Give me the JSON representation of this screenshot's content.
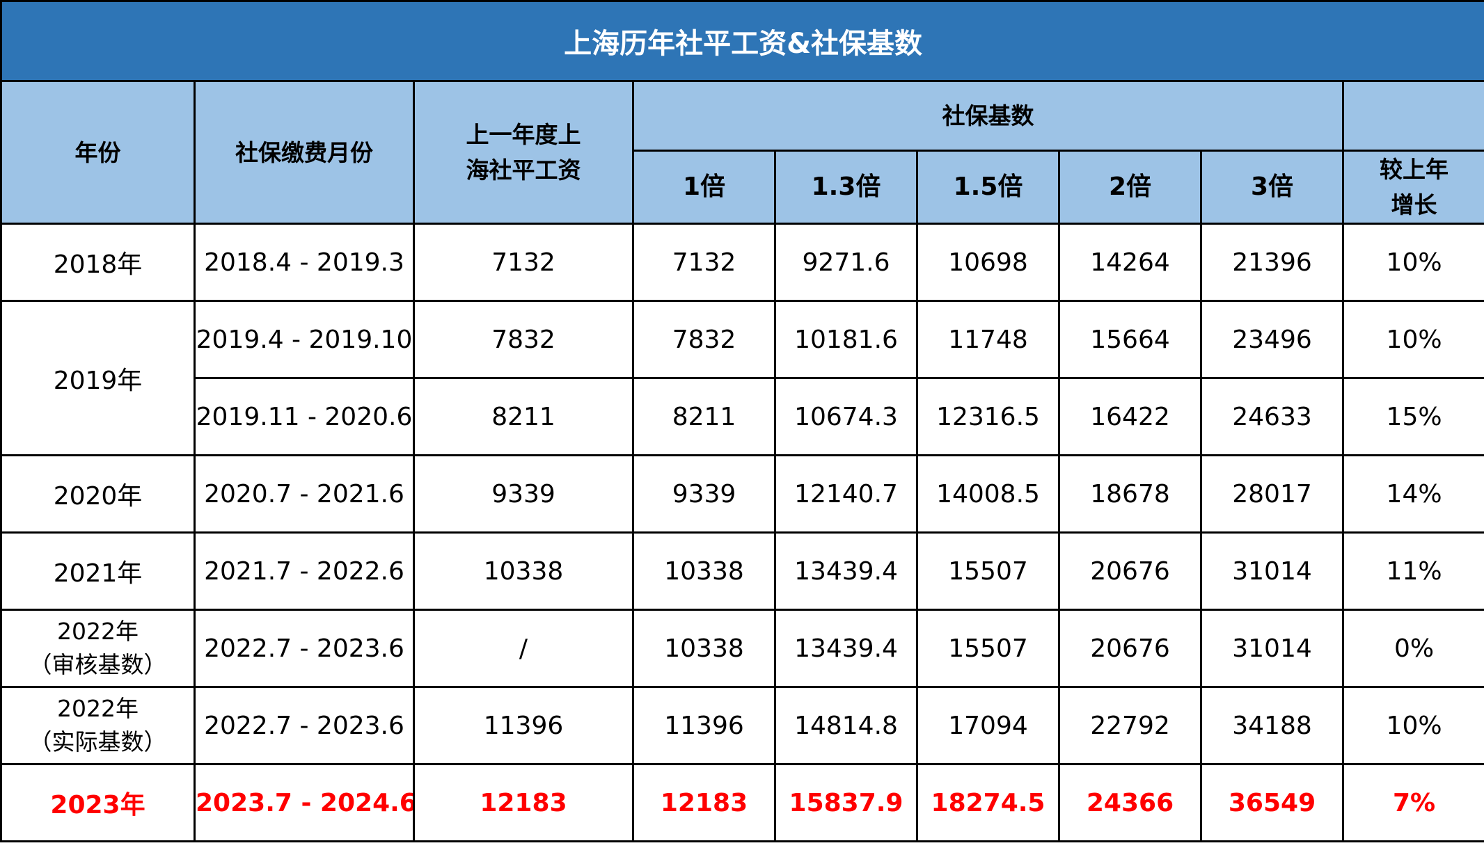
{
  "title": "上海历年社平工资&社保基数",
  "headers": {
    "year": "年份",
    "months": "社保缴费月份",
    "avg_wage": "上一年度上海社平工资",
    "base_group": "社保基数",
    "multipliers": [
      "1倍",
      "1.3倍",
      "1.5倍",
      "2倍",
      "3倍"
    ],
    "growth": "较上年增长"
  },
  "rows": [
    {
      "year": "2018年",
      "months": "2018.4 - 2019.3",
      "avg_wage": "7132",
      "x1": "7132",
      "x1_3": "9271.6",
      "x1_5": "10698",
      "x2": "14264",
      "x3": "21396",
      "growth": "10%"
    },
    {
      "year": "2019年",
      "months": "2019.4 - 2019.10",
      "avg_wage": "7832",
      "x1": "7832",
      "x1_3": "10181.6",
      "x1_5": "11748",
      "x2": "15664",
      "x3": "23496",
      "growth": "10%"
    },
    {
      "months": "2019.11 - 2020.6",
      "avg_wage": "8211",
      "x1": "8211",
      "x1_3": "10674.3",
      "x1_5": "12316.5",
      "x2": "16422",
      "x3": "24633",
      "growth": "15%"
    },
    {
      "year": "2020年",
      "months": "2020.7 - 2021.6",
      "avg_wage": "9339",
      "x1": "9339",
      "x1_3": "12140.7",
      "x1_5": "14008.5",
      "x2": "18678",
      "x3": "28017",
      "growth": "14%"
    },
    {
      "year": "2021年",
      "months": "2021.7 - 2022.6",
      "avg_wage": "10338",
      "x1": "10338",
      "x1_3": "13439.4",
      "x1_5": "15507",
      "x2": "20676",
      "x3": "31014",
      "growth": "11%"
    },
    {
      "year": "2022年",
      "year_note": "（审核基数）",
      "months": "2022.7 - 2023.6",
      "avg_wage": "/",
      "x1": "10338",
      "x1_3": "13439.4",
      "x1_5": "15507",
      "x2": "20676",
      "x3": "31014",
      "growth": "0%"
    },
    {
      "year": "2022年",
      "year_note": "（实际基数）",
      "months": "2022.7 - 2023.6",
      "avg_wage": "11396",
      "x1": "11396",
      "x1_3": "14814.8",
      "x1_5": "17094",
      "x2": "22792",
      "x3": "34188",
      "growth": "10%"
    },
    {
      "year": "2023年",
      "months": "2023.7 - 2024.6",
      "avg_wage": "12183",
      "x1": "12183",
      "x1_3": "15837.9",
      "x1_5": "18274.5",
      "x2": "24366",
      "x3": "36549",
      "growth": "7%"
    }
  ],
  "colors": {
    "title_bg": "#2e75b6",
    "header_bg": "#9dc3e6",
    "highlight": "#ff0000"
  }
}
